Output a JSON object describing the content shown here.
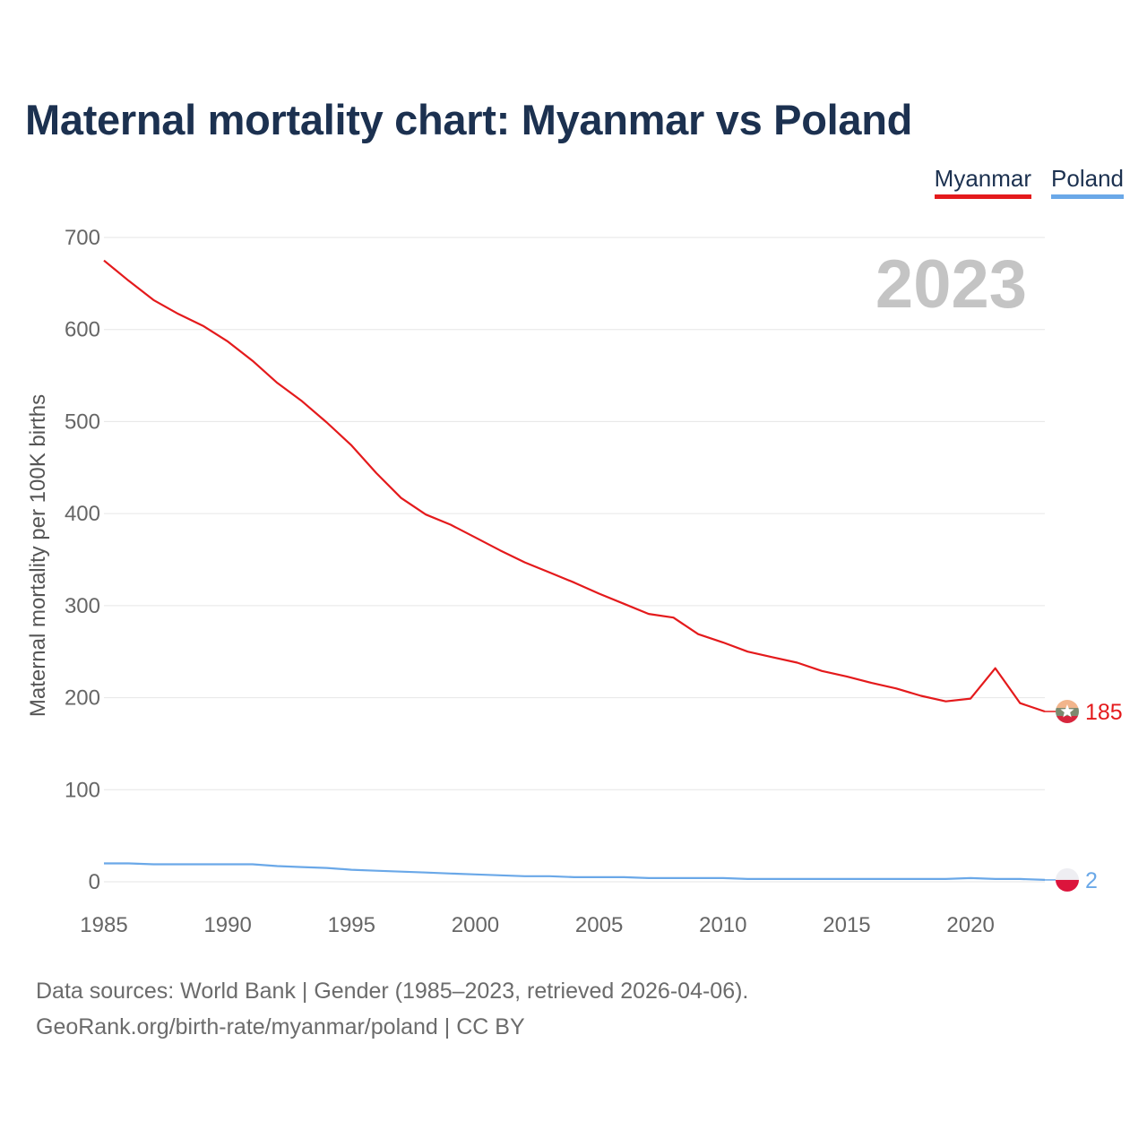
{
  "title": "Maternal mortality chart: Myanmar vs Poland",
  "legend": {
    "myanmar": "Myanmar",
    "poland": "Poland"
  },
  "year_watermark": "2023",
  "source": {
    "line1": "Data sources: World Bank | Gender (1985–2023, retrieved 2026-04-06).",
    "line2": "GeoRank.org/birth-rate/myanmar/poland | CC BY"
  },
  "colors": {
    "myanmar": "#e41a1c",
    "poland": "#6aa8e8",
    "grid": "#e6e6e6"
  },
  "chart_data": {
    "type": "line",
    "title": "Maternal mortality chart: Myanmar vs Poland",
    "xlabel": "",
    "ylabel": "Maternal mortality per 100K births",
    "xlim": [
      1985,
      2023
    ],
    "ylim": [
      0,
      700
    ],
    "xticks": [
      1985,
      1990,
      1995,
      2000,
      2005,
      2010,
      2015,
      2020
    ],
    "yticks": [
      0,
      100,
      200,
      300,
      400,
      500,
      600,
      700
    ],
    "x": [
      1985,
      1986,
      1987,
      1988,
      1989,
      1990,
      1991,
      1992,
      1993,
      1994,
      1995,
      1996,
      1997,
      1998,
      1999,
      2000,
      2001,
      2002,
      2003,
      2004,
      2005,
      2006,
      2007,
      2008,
      2009,
      2010,
      2011,
      2012,
      2013,
      2014,
      2015,
      2016,
      2017,
      2018,
      2019,
      2020,
      2021,
      2022,
      2023
    ],
    "series": [
      {
        "name": "Myanmar",
        "end_label": "185",
        "values": [
          675,
          653,
          632,
          617,
          604,
          587,
          566,
          542,
          522,
          499,
          474,
          444,
          417,
          399,
          388,
          374,
          360,
          347,
          336,
          325,
          313,
          302,
          291,
          287,
          269,
          260,
          250,
          244,
          238,
          229,
          223,
          216,
          210,
          202,
          196,
          199,
          232,
          194,
          185
        ]
      },
      {
        "name": "Poland",
        "end_label": "2",
        "values": [
          20,
          20,
          19,
          19,
          19,
          19,
          19,
          17,
          16,
          15,
          13,
          12,
          11,
          10,
          9,
          8,
          7,
          6,
          6,
          5,
          5,
          5,
          4,
          4,
          4,
          4,
          3,
          3,
          3,
          3,
          3,
          3,
          3,
          3,
          3,
          4,
          3,
          3,
          2
        ]
      }
    ]
  }
}
